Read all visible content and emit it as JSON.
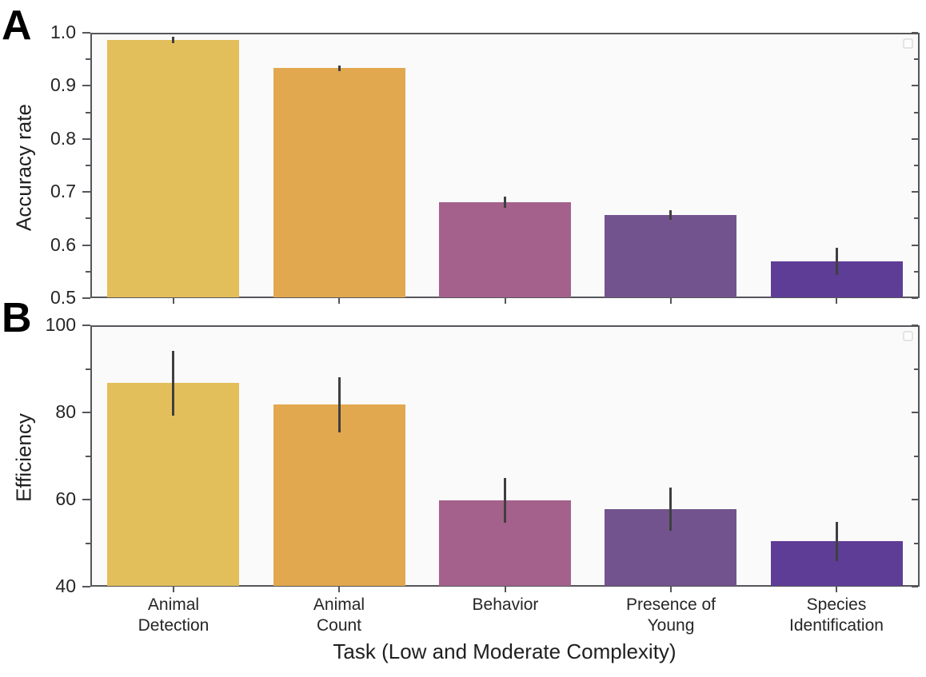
{
  "figure": {
    "panels": [
      {
        "letter": "A"
      },
      {
        "letter": "B"
      }
    ],
    "xlabel": "Task (Low and Moderate Complexity)"
  },
  "bar_colors": [
    "#e3bf5b",
    "#e2a850",
    "#a3618b",
    "#72538d",
    "#5e3d96"
  ],
  "error_bar_color": "#3f3f3f",
  "spine_color": "#55565a",
  "plot_bg": "#fbfafa",
  "category_lines": [
    [
      "Animal",
      "Detection"
    ],
    [
      "Animal",
      "Count"
    ],
    [
      "Behavior"
    ],
    [
      "Presence of",
      "Young"
    ],
    [
      "Species",
      "Identification"
    ]
  ],
  "chart_data": [
    {
      "type": "bar",
      "panel": "A",
      "title": "",
      "ylabel": "Accuracy rate",
      "xlabel": "",
      "ylim": [
        0.5,
        1.0
      ],
      "ytick_values": [
        0.5,
        0.6,
        0.7,
        0.8,
        0.9,
        1.0
      ],
      "ytick_labels": [
        "0.5",
        "0.6",
        "0.7",
        "0.8",
        "0.9",
        "1.0"
      ],
      "yticks_minor": [
        0.55,
        0.65,
        0.75,
        0.85,
        0.95
      ],
      "categories": [
        "Animal Detection",
        "Animal Count",
        "Behavior",
        "Presence of Young",
        "Species Identification"
      ],
      "values": [
        0.986,
        0.933,
        0.681,
        0.656,
        0.569
      ],
      "errors": [
        0.006,
        0.006,
        0.011,
        0.009,
        0.026
      ],
      "legend": "empty-placeholder",
      "grid": false
    },
    {
      "type": "bar",
      "panel": "B",
      "title": "",
      "ylabel": "Efficiency",
      "xlabel": "Task (Low and Moderate Complexity)",
      "ylim": [
        40,
        100
      ],
      "ytick_values": [
        40,
        60,
        80,
        100
      ],
      "ytick_labels": [
        "40",
        "60",
        "80",
        "100"
      ],
      "yticks_minor": [
        50,
        70,
        90
      ],
      "categories": [
        "Animal Detection",
        "Animal Count",
        "Behavior",
        "Presence of Young",
        "Species Identification"
      ],
      "values": [
        86.7,
        81.8,
        59.8,
        57.8,
        50.4
      ],
      "errors": [
        7.4,
        6.3,
        5.1,
        5.0,
        4.5
      ],
      "legend": "empty-placeholder",
      "grid": false
    }
  ]
}
